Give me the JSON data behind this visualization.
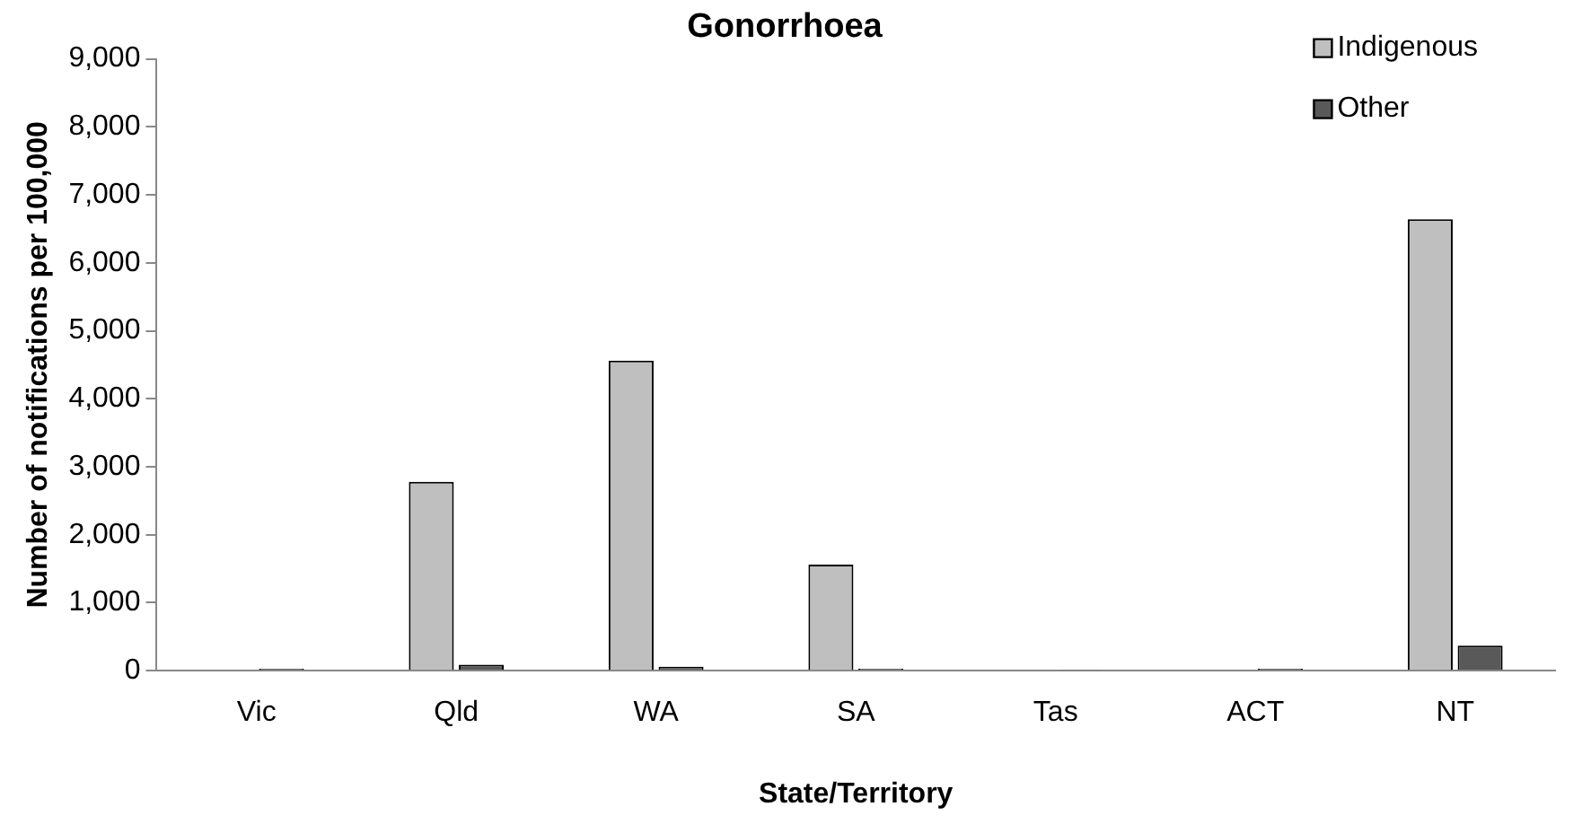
{
  "chart_data": {
    "type": "bar",
    "title": "Gonorrhoea",
    "xlabel": "State/Territory",
    "ylabel": "Number of notifications per 100,000",
    "categories": [
      "Vic",
      "Qld",
      "WA",
      "SA",
      "Tas",
      "ACT",
      "NT"
    ],
    "series": [
      {
        "name": "Indigenous",
        "color": "#bfbfbf",
        "values": [
          null,
          2780,
          4560,
          1560,
          null,
          null,
          6640
        ]
      },
      {
        "name": "Other",
        "color": "#595959",
        "values": [
          30,
          90,
          60,
          30,
          10,
          30,
          370
        ]
      }
    ],
    "ylim": [
      0,
      9000
    ],
    "yticks": [
      {
        "value": 0,
        "label": "0"
      },
      {
        "value": 1000,
        "label": "1,000"
      },
      {
        "value": 2000,
        "label": "2,000"
      },
      {
        "value": 3000,
        "label": "3,000"
      },
      {
        "value": 4000,
        "label": "4,000"
      },
      {
        "value": 5000,
        "label": "5,000"
      },
      {
        "value": 6000,
        "label": "6,000"
      },
      {
        "value": 7000,
        "label": "7,000"
      },
      {
        "value": 8000,
        "label": "8,000"
      },
      {
        "value": 9000,
        "label": "9,000"
      }
    ],
    "grid": false,
    "legend": "top right"
  }
}
